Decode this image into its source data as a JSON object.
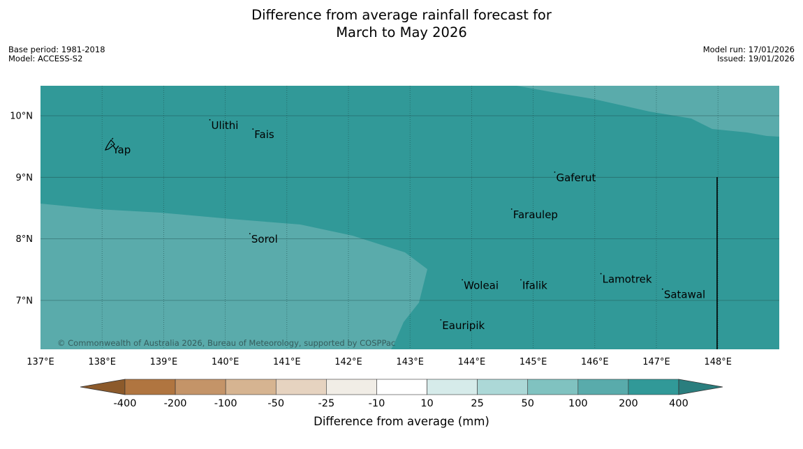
{
  "title_line1": "Difference from average rainfall forecast for",
  "title_line2": "March to May 2026",
  "base_period": "Base period: 1981-2018",
  "model": "Model: ACCESS-S2",
  "model_run": "Model run: 17/01/2026",
  "issued": "Issued: 19/01/2026",
  "copyright": "© Commonwealth of Australia 2026, Bureau of Meteorology, supported by COSPPac",
  "map": {
    "lon_range": [
      137,
      149
    ],
    "lat_range": [
      6.2,
      10.5
    ],
    "lon_ticks": [
      "137°E",
      "138°E",
      "139°E",
      "140°E",
      "141°E",
      "142°E",
      "143°E",
      "144°E",
      "145°E",
      "146°E",
      "147°E",
      "148°E"
    ],
    "lat_ticks": [
      "10°N",
      "9°N",
      "8°N",
      "7°N"
    ],
    "boundary_line_lon": 148,
    "places": [
      {
        "name": "Yap",
        "lon": 138.15,
        "lat": 9.5
      },
      {
        "name": "Ulithi",
        "lon": 139.75,
        "lat": 9.9
      },
      {
        "name": "Fais",
        "lon": 140.45,
        "lat": 9.75
      },
      {
        "name": "Gaferut",
        "lon": 145.35,
        "lat": 9.05
      },
      {
        "name": "Faraulep",
        "lon": 144.65,
        "lat": 8.45
      },
      {
        "name": "Sorol",
        "lon": 140.4,
        "lat": 8.05
      },
      {
        "name": "Lamotrek",
        "lon": 146.1,
        "lat": 7.4
      },
      {
        "name": "Woleai",
        "lon": 143.85,
        "lat": 7.3
      },
      {
        "name": "Ifalik",
        "lon": 144.8,
        "lat": 7.3
      },
      {
        "name": "Satawal",
        "lon": 147.1,
        "lat": 7.15
      },
      {
        "name": "Eauripik",
        "lon": 143.5,
        "lat": 6.65
      }
    ]
  },
  "colorbar": {
    "label": "Difference from average (mm)",
    "tick_labels": [
      "-400",
      "-200",
      "-100",
      "-50",
      "-25",
      "-10",
      "10",
      "25",
      "50",
      "100",
      "200",
      "400"
    ],
    "colors": [
      "#8c5a2b",
      "#b07540",
      "#c49468",
      "#d6b491",
      "#e6d3c0",
      "#f1ede6",
      "#ffffff",
      "#d6ebea",
      "#acd8d7",
      "#80c2c0",
      "#59abab",
      "#319998",
      "#2a7e7e"
    ]
  }
}
